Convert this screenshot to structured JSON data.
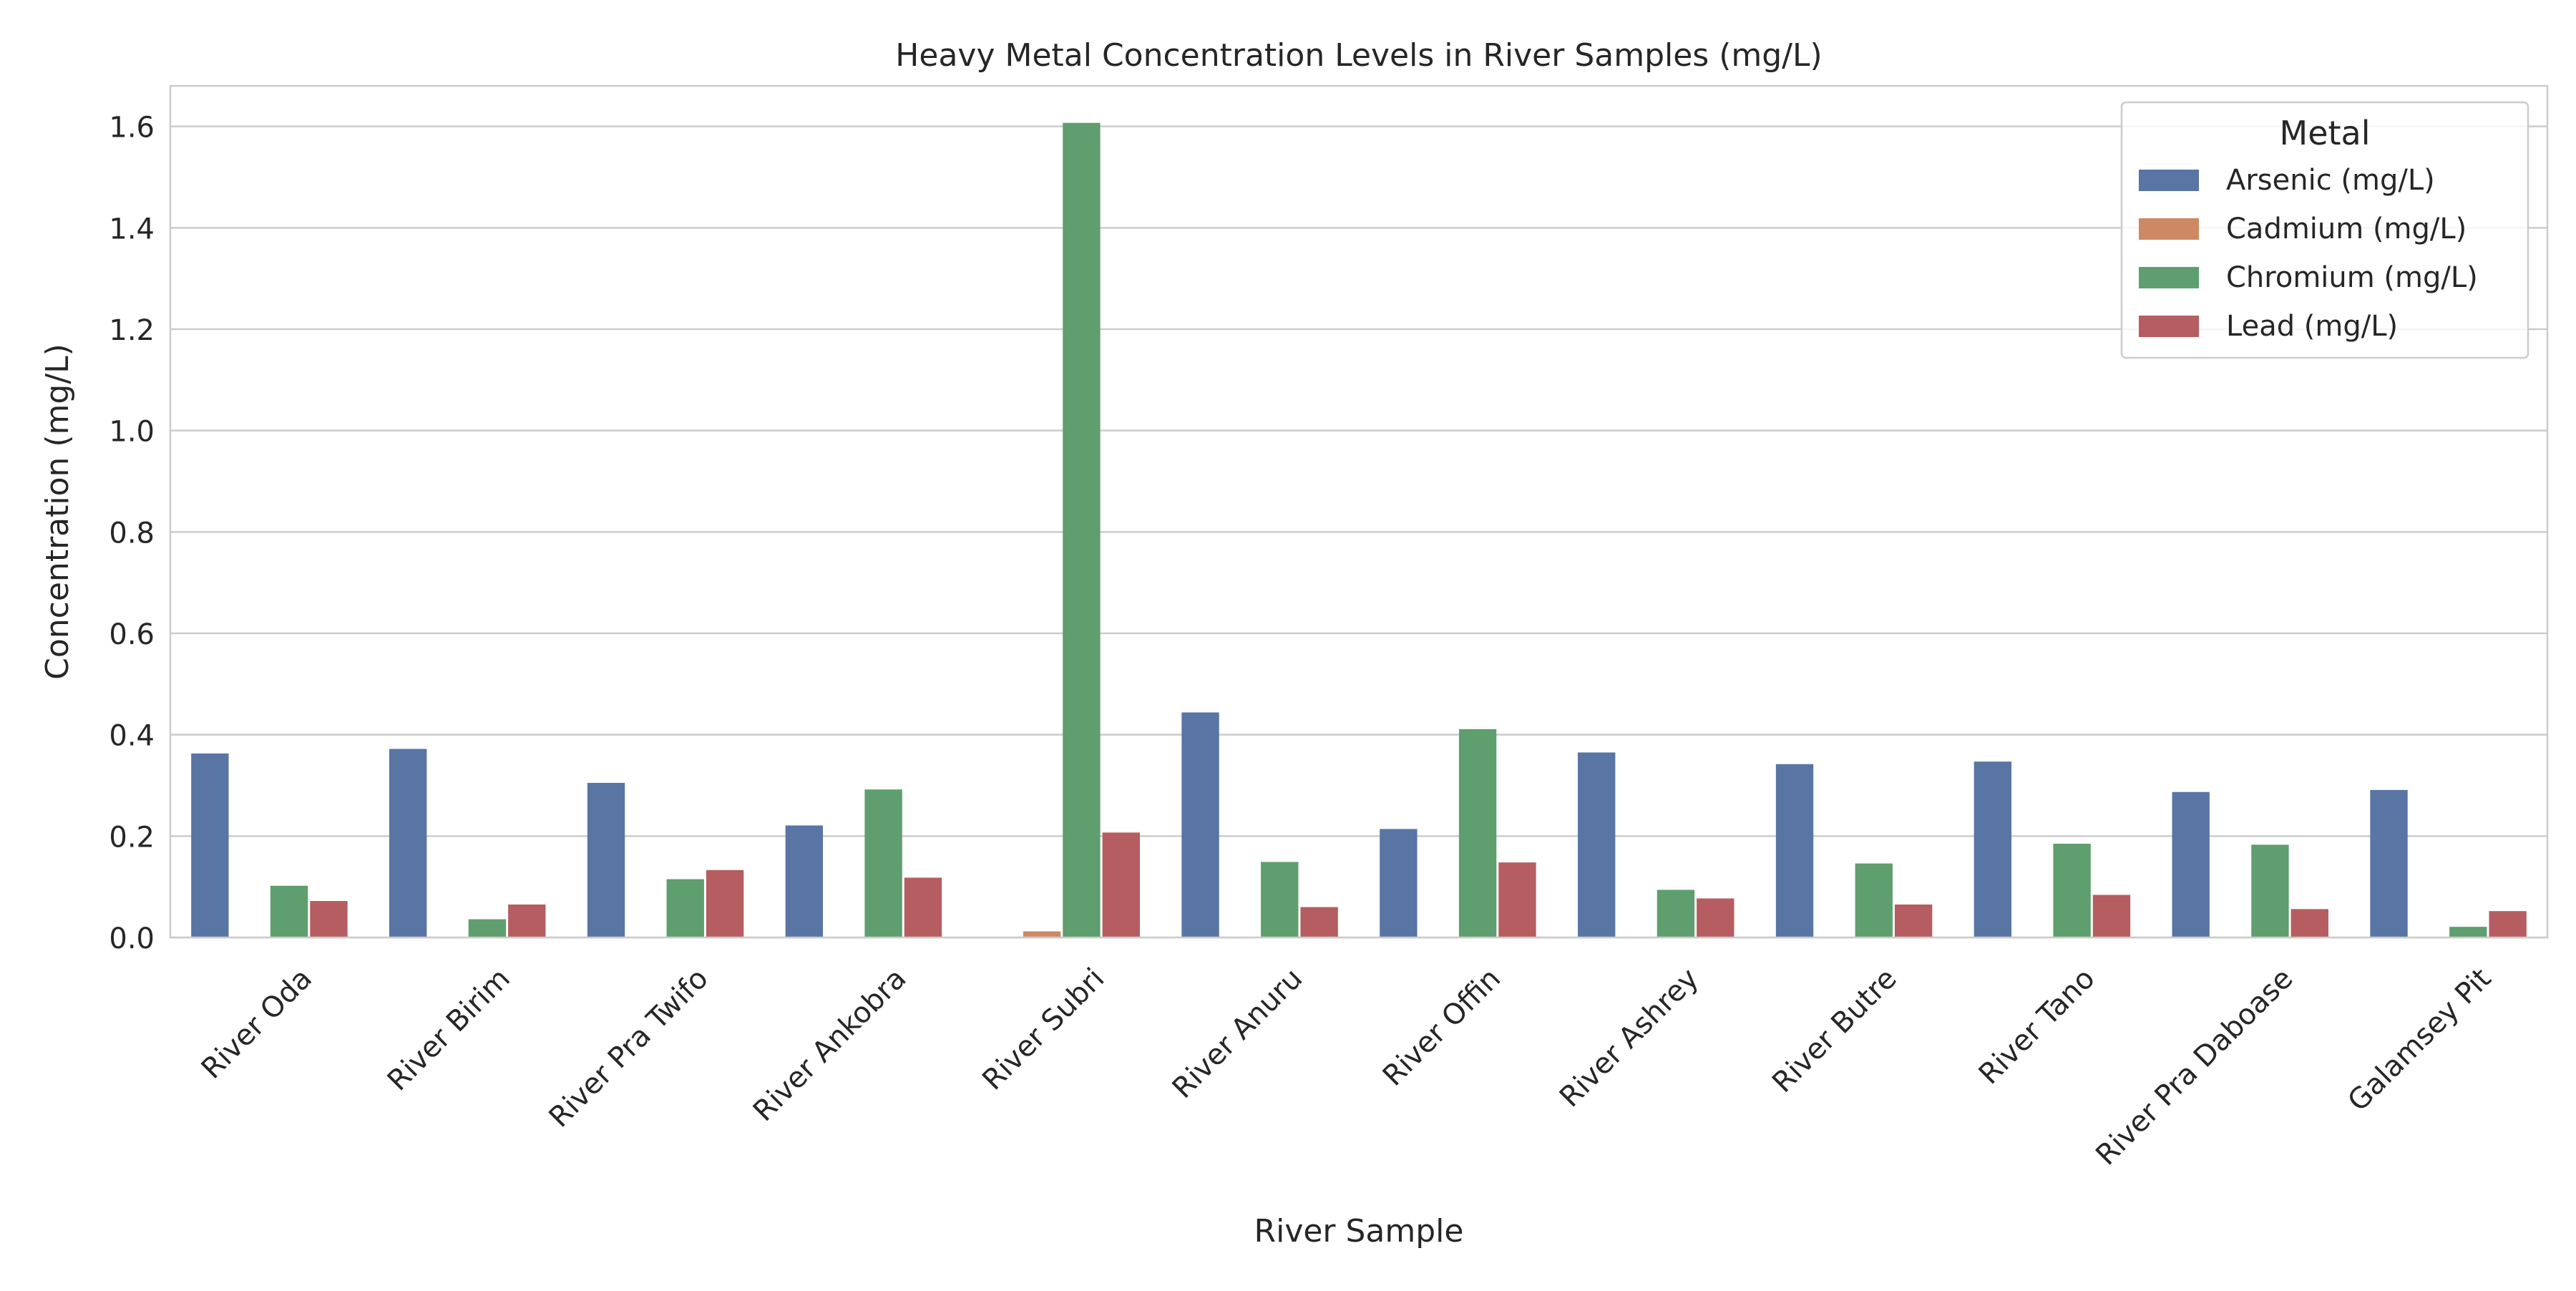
{
  "chart_data": {
    "type": "bar",
    "title": "Heavy Metal Concentration Levels in River Samples (mg/L)",
    "xlabel": "River Sample",
    "ylabel": "Concentration (mg/L)",
    "ylim": [
      0,
      1.68
    ],
    "yticks": [
      0.0,
      0.2,
      0.4,
      0.6,
      0.8,
      1.0,
      1.2,
      1.4,
      1.6
    ],
    "ytick_labels": [
      "0.0",
      "0.2",
      "0.4",
      "0.6",
      "0.8",
      "1.0",
      "1.2",
      "1.4",
      "1.6"
    ],
    "grid": true,
    "legend": {
      "title": "Metal",
      "placement": "top-right"
    },
    "categories": [
      "River Oda",
      "River Birim",
      "River Pra Twifo",
      "River Ankobra",
      "River Subri",
      "River Anuru",
      "River Offin",
      "River Ashrey",
      "River Butre",
      "River Tano",
      "River Pra Daboase",
      "Galamsey Pit"
    ],
    "series": [
      {
        "name": "Arsenic (mg/L)",
        "color": "#5875a4",
        "values": [
          0.363,
          0.372,
          0.305,
          0.221,
          0.0,
          0.444,
          0.214,
          0.365,
          0.342,
          0.347,
          0.287,
          0.291
        ]
      },
      {
        "name": "Cadmium (mg/L)",
        "color": "#cc8963",
        "values": [
          0.0,
          0.0,
          0.0,
          0.0,
          0.012,
          0.0,
          0.0,
          0.0,
          0.0,
          0.0,
          0.0,
          0.0
        ]
      },
      {
        "name": "Chromium (mg/L)",
        "color": "#5f9e6e",
        "values": [
          0.102,
          0.036,
          0.115,
          0.292,
          1.607,
          0.149,
          0.411,
          0.094,
          0.146,
          0.185,
          0.183,
          0.021
        ]
      },
      {
        "name": "Lead (mg/L)",
        "color": "#b55d60",
        "values": [
          0.072,
          0.065,
          0.133,
          0.118,
          0.207,
          0.06,
          0.148,
          0.077,
          0.065,
          0.084,
          0.056,
          0.052
        ]
      }
    ]
  }
}
